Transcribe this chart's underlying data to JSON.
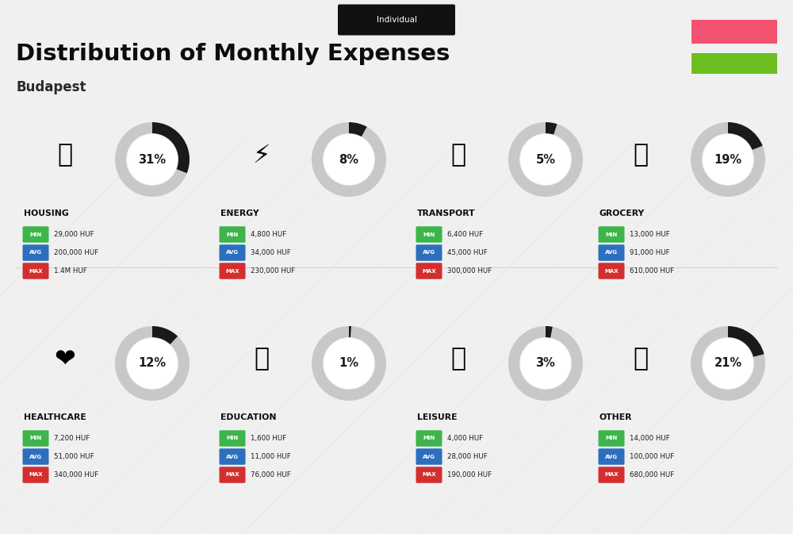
{
  "title": "Distribution of Monthly Expenses",
  "subtitle": "Budapest",
  "tag": "Individual",
  "bg_color": "#f0f0f0",
  "flag_red": "#f25270",
  "flag_green": "#6abf1e",
  "categories": [
    {
      "name": "HOUSING",
      "pct": 31,
      "min": "29,000 HUF",
      "avg": "200,000 HUF",
      "max": "1.4M HUF",
      "row": 0,
      "col": 0
    },
    {
      "name": "ENERGY",
      "pct": 8,
      "min": "4,800 HUF",
      "avg": "34,000 HUF",
      "max": "230,000 HUF",
      "row": 0,
      "col": 1
    },
    {
      "name": "TRANSPORT",
      "pct": 5,
      "min": "6,400 HUF",
      "avg": "45,000 HUF",
      "max": "300,000 HUF",
      "row": 0,
      "col": 2
    },
    {
      "name": "GROCERY",
      "pct": 19,
      "min": "13,000 HUF",
      "avg": "91,000 HUF",
      "max": "610,000 HUF",
      "row": 0,
      "col": 3
    },
    {
      "name": "HEALTHCARE",
      "pct": 12,
      "min": "7,200 HUF",
      "avg": "51,000 HUF",
      "max": "340,000 HUF",
      "row": 1,
      "col": 0
    },
    {
      "name": "EDUCATION",
      "pct": 1,
      "min": "1,600 HUF",
      "avg": "11,000 HUF",
      "max": "76,000 HUF",
      "row": 1,
      "col": 1
    },
    {
      "name": "LEISURE",
      "pct": 3,
      "min": "4,000 HUF",
      "avg": "28,000 HUF",
      "max": "190,000 HUF",
      "row": 1,
      "col": 2
    },
    {
      "name": "OTHER",
      "pct": 21,
      "min": "14,000 HUF",
      "avg": "100,000 HUF",
      "max": "680,000 HUF",
      "row": 1,
      "col": 3
    }
  ],
  "color_min": "#3db54a",
  "color_avg": "#2c6fbe",
  "color_max": "#d32f2f",
  "donut_filled": "#1a1a1a",
  "donut_empty": "#c8c8c8",
  "icon_labels": [
    "HOUSING",
    "ENERGY",
    "TRANSPORT",
    "GROCERY",
    "HEALTHCARE",
    "EDUCATION",
    "LEISURE",
    "OTHER"
  ]
}
